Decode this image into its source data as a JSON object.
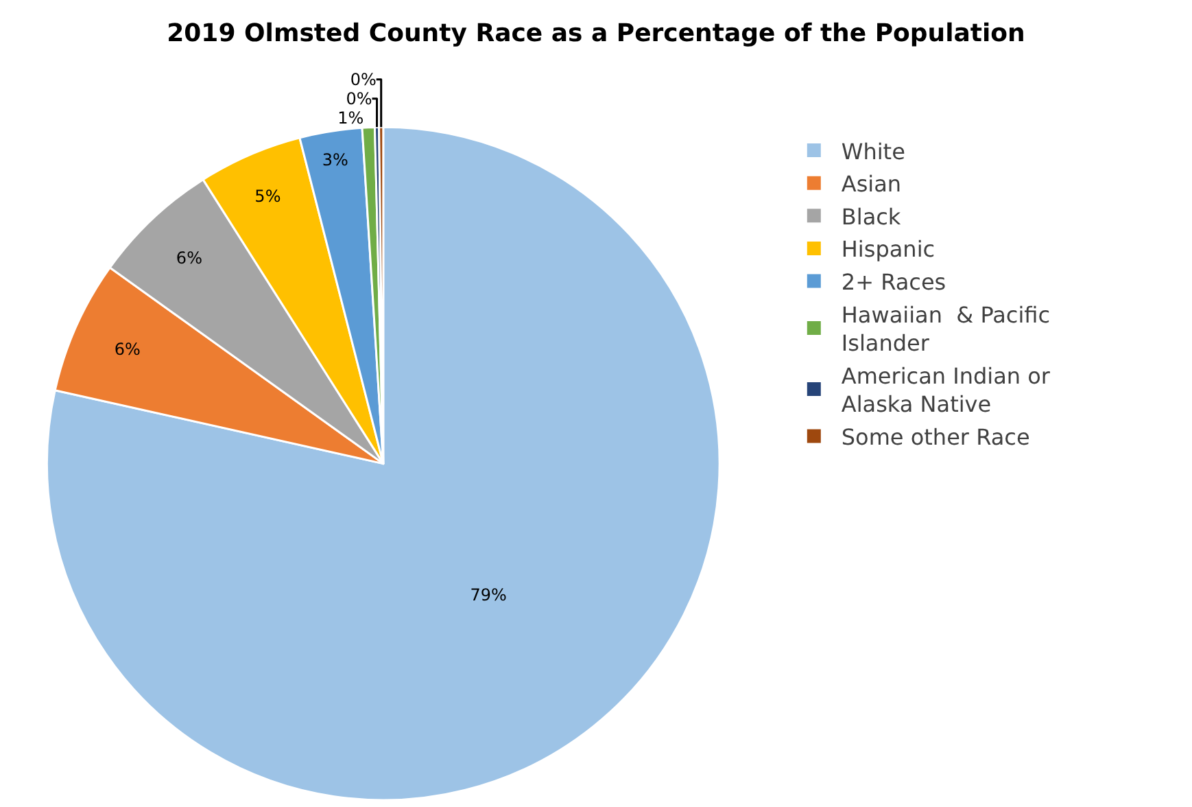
{
  "chart_data": {
    "type": "pie",
    "title": "2019 Olmsted County Race as a Percentage of the Population",
    "categories": [
      "White",
      "Asian",
      "Black",
      "Hispanic",
      "2+ Races",
      "Hawaiian  & Pacific Islander",
      "American Indian or Alaska Native",
      "Some other Race"
    ],
    "values": [
      78.5,
      6.4,
      6.1,
      5.0,
      3.0,
      0.6,
      0.2,
      0.2
    ],
    "value_labels": [
      "79%",
      "6%",
      "6%",
      "5%",
      "3%",
      "1%",
      "0%",
      "0%"
    ],
    "colors": [
      "#9dc3e6",
      "#ed7d31",
      "#a5a5a5",
      "#ffc000",
      "#5b9bd5",
      "#70ad47",
      "#264478",
      "#9e480e"
    ],
    "legend": "right"
  }
}
